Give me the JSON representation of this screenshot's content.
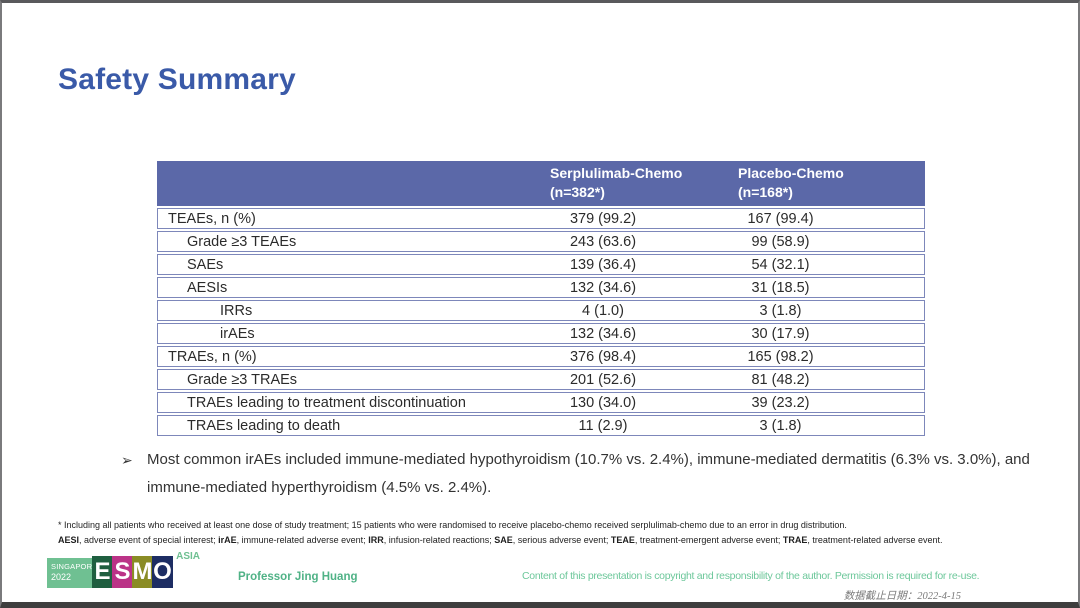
{
  "slide_title": "Safety Summary",
  "table": {
    "header": {
      "serplulimab": {
        "line1": "Serplulimab-Chemo",
        "line2": "(n=382*)"
      },
      "placebo": {
        "line1": "Placebo-Chemo",
        "line2": "(n=168*)"
      }
    },
    "rows": [
      {
        "label": "TEAEs, n (%)",
        "indent": 0,
        "serplulimab_chemo": "379 (99.2)",
        "placebo_chemo": "167 (99.4)"
      },
      {
        "label": "Grade ≥3 TEAEs",
        "indent": 1,
        "serplulimab_chemo": "243 (63.6)",
        "placebo_chemo": "99 (58.9)"
      },
      {
        "label": "SAEs",
        "indent": 1,
        "serplulimab_chemo": "139 (36.4)",
        "placebo_chemo": "54 (32.1)"
      },
      {
        "label": "AESIs",
        "indent": 1,
        "serplulimab_chemo": "132 (34.6)",
        "placebo_chemo": "31 (18.5)"
      },
      {
        "label": "IRRs",
        "indent": 2,
        "serplulimab_chemo": "4 (1.0)",
        "placebo_chemo": "3 (1.8)"
      },
      {
        "label": "irAEs",
        "indent": 2,
        "serplulimab_chemo": "132 (34.6)",
        "placebo_chemo": "30 (17.9)"
      },
      {
        "label": "TRAEs, n (%)",
        "indent": 0,
        "serplulimab_chemo": "376 (98.4)",
        "placebo_chemo": "165 (98.2)"
      },
      {
        "label": "Grade ≥3 TRAEs",
        "indent": 1,
        "serplulimab_chemo": "201 (52.6)",
        "placebo_chemo": "81 (48.2)"
      },
      {
        "label": "TRAEs leading to treatment discontinuation",
        "indent": 1,
        "serplulimab_chemo": "130 (34.0)",
        "placebo_chemo": "39 (23.2)"
      },
      {
        "label": "TRAEs leading to death",
        "indent": 1,
        "serplulimab_chemo": "11 (2.9)",
        "placebo_chemo": "3 (1.8)"
      }
    ]
  },
  "bullet": {
    "marker": "➢",
    "text": "Most common irAEs included immune-mediated hypothyroidism (10.7% vs. 2.4%), immune-mediated dermatitis (6.3% vs. 3.0%), and immune-mediated hyperthyroidism (4.5% vs. 2.4%)."
  },
  "footnotes": {
    "line1": "* Including all patients who received at least one dose of study treatment; 15 patients who were randomised to receive placebo-chemo received serplulimab-chemo due to an error in drug distribution.",
    "abbreviations": [
      {
        "text": "AESI",
        "bold": true
      },
      {
        "text": ", adverse event of special interest; ",
        "bold": false
      },
      {
        "text": "irAE",
        "bold": true
      },
      {
        "text": ", immune-related adverse event; ",
        "bold": false
      },
      {
        "text": "IRR",
        "bold": true
      },
      {
        "text": ", infusion-related reactions; ",
        "bold": false
      },
      {
        "text": "SAE",
        "bold": true
      },
      {
        "text": ", serious adverse event; ",
        "bold": false
      },
      {
        "text": "TEAE",
        "bold": true
      },
      {
        "text": ", treatment-emergent adverse event; ",
        "bold": false
      },
      {
        "text": "TRAE",
        "bold": true
      },
      {
        "text": ", treatment-related adverse event.",
        "bold": false
      }
    ]
  },
  "footer": {
    "logo": {
      "event_location": "SINGAPORE",
      "event_year": "2022",
      "letters": [
        "E",
        "S",
        "M",
        "O"
      ],
      "region": "ASIA"
    },
    "presenter": "Professor Jing Huang",
    "copyright": "Content of this presentation is copyright and responsibility of the author. Permission is required for re-use.",
    "data_cutoff": "数据截止日期：2022-4-15"
  },
  "colors": {
    "title_blue": "#3a5aa8",
    "table_header_bg": "#5b68a8",
    "table_border": "#7d87ba",
    "accent_green": "#6fc092",
    "logo_e_bg": "#1f5f40",
    "logo_s_bg": "#bb3387",
    "logo_m_bg": "#8a8c25",
    "logo_o_bg": "#1d2d63"
  }
}
